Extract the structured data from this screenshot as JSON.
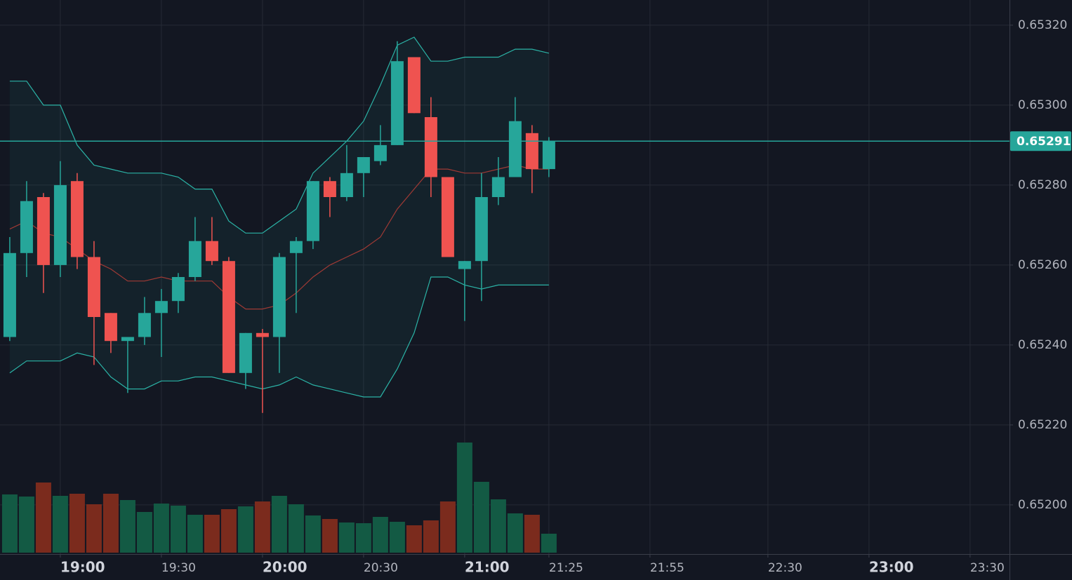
{
  "chart_data": {
    "type": "candlestick",
    "x": [
      1125,
      1130,
      1135,
      1140,
      1145,
      1150,
      1155,
      1160,
      1165,
      1170,
      1175,
      1180,
      1185,
      1190,
      1195,
      1200,
      1205,
      1210,
      1215,
      1220,
      1225,
      1230,
      1235,
      1240,
      1245,
      1250,
      1255,
      1260,
      1265,
      1270,
      1275,
      1280,
      1285
    ],
    "open": [
      0.65242,
      0.65263,
      0.65277,
      0.6526,
      0.65281,
      0.65262,
      0.65248,
      0.65241,
      0.65242,
      0.65248,
      0.65251,
      0.65257,
      0.65266,
      0.65261,
      0.65233,
      0.65243,
      0.65242,
      0.65263,
      0.65266,
      0.65281,
      0.65277,
      0.65283,
      0.65286,
      0.6529,
      0.65312,
      0.65297,
      0.65282,
      0.65259,
      0.65261,
      0.65277,
      0.65282,
      0.65293,
      0.65284
    ],
    "high": [
      0.65267,
      0.65281,
      0.65278,
      0.65286,
      0.65283,
      0.65266,
      0.65248,
      0.65242,
      0.65252,
      0.65254,
      0.65258,
      0.65272,
      0.65272,
      0.65262,
      0.65243,
      0.65244,
      0.65263,
      0.65267,
      0.65281,
      0.65282,
      0.6529,
      0.65287,
      0.65295,
      0.65316,
      0.65312,
      0.65302,
      0.65282,
      0.65261,
      0.65283,
      0.65287,
      0.65302,
      0.65295,
      0.65292
    ],
    "low": [
      0.65241,
      0.65257,
      0.65253,
      0.65257,
      0.65259,
      0.65235,
      0.65238,
      0.65228,
      0.6524,
      0.65237,
      0.65248,
      0.65256,
      0.6526,
      0.65233,
      0.65229,
      0.65223,
      0.65233,
      0.65248,
      0.65264,
      0.65272,
      0.65276,
      0.65277,
      0.65285,
      0.6529,
      0.65298,
      0.65277,
      0.65262,
      0.65246,
      0.65251,
      0.65275,
      0.65282,
      0.65278,
      0.65282
    ],
    "close": [
      0.65263,
      0.65276,
      0.6526,
      0.6528,
      0.65262,
      0.65247,
      0.65241,
      0.65242,
      0.65248,
      0.65251,
      0.65257,
      0.65266,
      0.65261,
      0.65233,
      0.65243,
      0.65242,
      0.65262,
      0.65266,
      0.65281,
      0.65277,
      0.65283,
      0.65287,
      0.6529,
      0.65311,
      0.65298,
      0.65282,
      0.65262,
      0.65261,
      0.65277,
      0.65282,
      0.65296,
      0.65284,
      0.65291
    ],
    "volume": [
      83,
      80,
      100,
      81,
      84,
      69,
      84,
      75,
      58,
      70,
      67,
      54,
      54,
      62,
      66,
      73,
      81,
      69,
      53,
      48,
      43,
      42,
      51,
      44,
      39,
      46,
      73,
      157,
      101,
      76,
      56,
      54,
      27
    ],
    "bb_upper": [
      0.65306,
      0.65306,
      0.653,
      0.653,
      0.6529,
      0.65285,
      0.65284,
      0.65283,
      0.65283,
      0.65283,
      0.65282,
      0.65279,
      0.65279,
      0.65271,
      0.65268,
      0.65268,
      0.65271,
      0.65274,
      0.65283,
      0.65287,
      0.65291,
      0.65296,
      0.65305,
      0.65315,
      0.65317,
      0.65311,
      0.65311,
      0.65312,
      0.65312,
      0.65312,
      0.65314,
      0.65314,
      0.65313
    ],
    "bb_middle": [
      0.65269,
      0.65271,
      0.65268,
      0.65267,
      0.65264,
      0.65261,
      0.65259,
      0.65256,
      0.65256,
      0.65257,
      0.65256,
      0.65256,
      0.65256,
      0.65252,
      0.65249,
      0.65249,
      0.6525,
      0.65253,
      0.65257,
      0.6526,
      0.65262,
      0.65264,
      0.65267,
      0.65274,
      0.65279,
      0.65284,
      0.65284,
      0.65283,
      0.65283,
      0.65284,
      0.65285,
      0.65284,
      0.65284
    ],
    "bb_lower": [
      0.65233,
      0.65236,
      0.65236,
      0.65236,
      0.65238,
      0.65237,
      0.65232,
      0.65229,
      0.65229,
      0.65231,
      0.65231,
      0.65232,
      0.65232,
      0.65231,
      0.6523,
      0.65229,
      0.6523,
      0.65232,
      0.6523,
      0.65229,
      0.65228,
      0.65227,
      0.65227,
      0.65234,
      0.65243,
      0.65257,
      0.65257,
      0.65255,
      0.65254,
      0.65255,
      0.65255,
      0.65255,
      0.65255
    ],
    "xlim": [
      1122.1,
      1421.7
    ],
    "ylim": [
      0.651877,
      0.653263
    ],
    "volume_lim": [
      0,
      200
    ],
    "xticks": [
      {
        "value": 1140,
        "label": "19:00"
      },
      {
        "value": 1170,
        "label": "19:30"
      },
      {
        "value": 1200,
        "label": "20:00"
      },
      {
        "value": 1230,
        "label": "20:30"
      },
      {
        "value": 1260,
        "label": "21:00"
      },
      {
        "value": 1285,
        "label": "21:25"
      },
      {
        "value": 1315,
        "label": "21:55"
      },
      {
        "value": 1350,
        "label": "22:30"
      },
      {
        "value": 1380,
        "label": "23:00"
      },
      {
        "value": 1410,
        "label": "23:30"
      }
    ],
    "yticks": [
      {
        "value": 0.6532,
        "label": "0.65320"
      },
      {
        "value": 0.653,
        "label": "0.65300"
      },
      {
        "value": 0.6528,
        "label": "0.65280"
      },
      {
        "value": 0.6526,
        "label": "0.65260"
      },
      {
        "value": 0.6524,
        "label": "0.65240"
      },
      {
        "value": 0.6522,
        "label": "0.65220"
      },
      {
        "value": 0.652,
        "label": "0.65200"
      }
    ],
    "last_price": {
      "value": 0.65291,
      "label": "0.65291"
    },
    "grid": true,
    "up_color": "#26a69a",
    "down_color": "#ef5350",
    "volume_up_color": "#135a44",
    "volume_down_color": "#7b2b1d",
    "band_color": "#2bb3a6",
    "middle_color": "#a03a35",
    "last_price_color": "#26a69a"
  }
}
